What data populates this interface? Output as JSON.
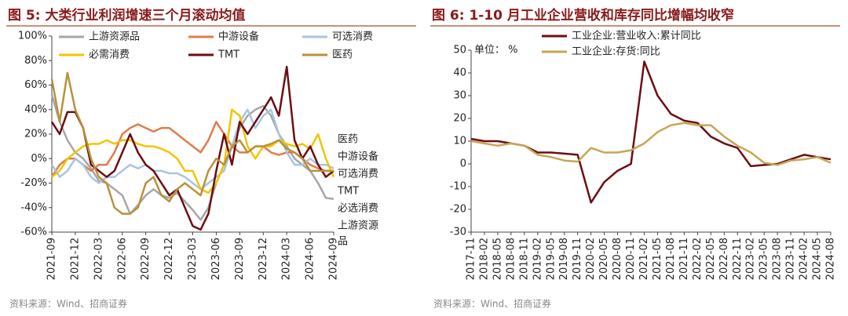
{
  "chart_data": [
    {
      "type": "line",
      "title": "图 5:  大类行业利润增速三个月滚动均值",
      "source": "资料来源：Wind、招商证券",
      "categories": [
        "2021-09",
        null,
        null,
        "2021-12",
        null,
        null,
        "2022-03",
        null,
        null,
        "2022-06",
        null,
        null,
        "2022-09",
        null,
        null,
        "2022-12",
        null,
        null,
        "2023-03",
        null,
        null,
        "2023-06",
        null,
        null,
        "2023-09",
        null,
        null,
        "2023-12",
        null,
        null,
        "2024-03",
        null,
        null,
        "2024-06",
        null,
        null,
        "2024-09"
      ],
      "ylim": [
        -60,
        100
      ],
      "yticks": [
        {
          "value": -60,
          "label": "-60%"
        },
        {
          "value": -40,
          "label": "-40%"
        },
        {
          "value": -20,
          "label": "-20%"
        },
        {
          "value": 0,
          "label": "0%"
        },
        {
          "value": 20,
          "label": "20%"
        },
        {
          "value": 40,
          "label": "40%"
        },
        {
          "value": 60,
          "label": "60%"
        },
        {
          "value": 80,
          "label": "80%"
        },
        {
          "value": 100,
          "label": "100%"
        }
      ],
      "series": [
        {
          "name": "上游资源品",
          "color": "#a6a6a6",
          "values": [
            52,
            30,
            15,
            5,
            0,
            -8,
            -18,
            -20,
            -25,
            -30,
            -45,
            -38,
            -30,
            -25,
            -30,
            -32,
            -28,
            -35,
            -42,
            -50,
            -40,
            -20,
            -5,
            10,
            25,
            35,
            40,
            43,
            35,
            20,
            10,
            0,
            -5,
            -10,
            -20,
            -32,
            -33
          ]
        },
        {
          "name": "中游设备",
          "color": "#e07b4c",
          "values": [
            -15,
            -5,
            0,
            0,
            -5,
            -10,
            -5,
            -5,
            5,
            20,
            25,
            28,
            25,
            22,
            25,
            25,
            20,
            15,
            10,
            5,
            15,
            30,
            20,
            10,
            5,
            5,
            10,
            10,
            5,
            3,
            5,
            5,
            0,
            -5,
            -8,
            -10,
            -10
          ]
        },
        {
          "name": "可选消费",
          "color": "#a9c4e0",
          "values": [
            -5,
            -15,
            -10,
            0,
            -5,
            -15,
            -20,
            -15,
            -15,
            -10,
            -5,
            -8,
            -5,
            -10,
            -10,
            -12,
            -12,
            -15,
            -20,
            -25,
            -20,
            -15,
            -10,
            10,
            30,
            40,
            25,
            35,
            40,
            20,
            5,
            -5,
            -5,
            0,
            -5,
            -5,
            -8
          ]
        },
        {
          "name": "必需消费",
          "color": "#f2c500",
          "values": [
            -15,
            -10,
            0,
            5,
            10,
            12,
            12,
            15,
            12,
            15,
            15,
            12,
            10,
            10,
            8,
            5,
            0,
            -10,
            -10,
            -25,
            -28,
            -20,
            -5,
            40,
            35,
            10,
            0,
            10,
            10,
            15,
            12,
            10,
            12,
            8,
            20,
            0,
            -15
          ]
        },
        {
          "name": "TMT",
          "color": "#6b0e12",
          "values": [
            30,
            20,
            38,
            38,
            25,
            -5,
            -10,
            -15,
            -10,
            5,
            20,
            5,
            -5,
            -10,
            -20,
            -30,
            -25,
            -40,
            -55,
            -58,
            -45,
            -10,
            20,
            -5,
            30,
            20,
            30,
            40,
            50,
            35,
            75,
            15,
            0,
            10,
            -5,
            -15,
            -10
          ]
        },
        {
          "name": "医药",
          "color": "#b8913a",
          "values": [
            65,
            30,
            70,
            40,
            25,
            0,
            -15,
            -20,
            -40,
            -45,
            -45,
            -40,
            -20,
            -15,
            -30,
            -35,
            -25,
            -20,
            -25,
            -30,
            -10,
            0,
            -5,
            10,
            15,
            5,
            10,
            10,
            12,
            15,
            8,
            5,
            0,
            -10,
            -10,
            -10,
            -10
          ]
        }
      ],
      "annotations": [
        {
          "text": "医药",
          "color": "#b8913a"
        },
        {
          "text": "中游设备",
          "color": "#e07b4c"
        },
        {
          "text": "可选消费",
          "color": "#8fb0d6"
        },
        {
          "text": "TMT",
          "color": "#6b0e12"
        },
        {
          "text": "必选消费",
          "color": "#e0b400"
        },
        {
          "text": "上游资源品",
          "color": "#999999"
        }
      ]
    },
    {
      "type": "line",
      "title": "图 6:  1-10 月工业企业营收和库存同比增幅均收窄",
      "source": "资料来源：Wind、招商证券",
      "unit_label": "单位： %",
      "categories": [
        "2017-11",
        "2018-02",
        "2018-05",
        "2018-08",
        "2018-11",
        "2019-02",
        "2019-05",
        "2019-08",
        "2019-11",
        "2020-02",
        "2020-05",
        "2020-08",
        "2020-11",
        "2021-02",
        "2021-05",
        "2021-08",
        "2021-11",
        "2022-02",
        "2022-05",
        "2022-08",
        "2022-11",
        "2023-02",
        "2023-05",
        "2023-08",
        "2023-11",
        "2024-02",
        "2024-05",
        "2024-08"
      ],
      "ylim": [
        -30,
        50
      ],
      "yticks": [
        -30,
        -20,
        -10,
        0,
        10,
        20,
        30,
        40,
        50
      ],
      "series": [
        {
          "name": "工业企业:营业收入:累计同比",
          "color": "#6b0e12",
          "values": [
            11,
            10,
            10,
            9,
            8,
            5,
            5,
            4.5,
            4,
            -17,
            -8,
            -3,
            0,
            45,
            30,
            22,
            19,
            18,
            12,
            9,
            7,
            -1,
            -0.5,
            0,
            2,
            4,
            3,
            2
          ]
        },
        {
          "name": "工业企业:存货:同比",
          "color": "#c8a555",
          "values": [
            10,
            9,
            8,
            9,
            8,
            4,
            3,
            1.5,
            1,
            7,
            5,
            5,
            6,
            9,
            14,
            17,
            18,
            17,
            17,
            12,
            8,
            5,
            0.5,
            -0.5,
            1.5,
            2,
            3,
            0.5
          ]
        }
      ]
    }
  ]
}
